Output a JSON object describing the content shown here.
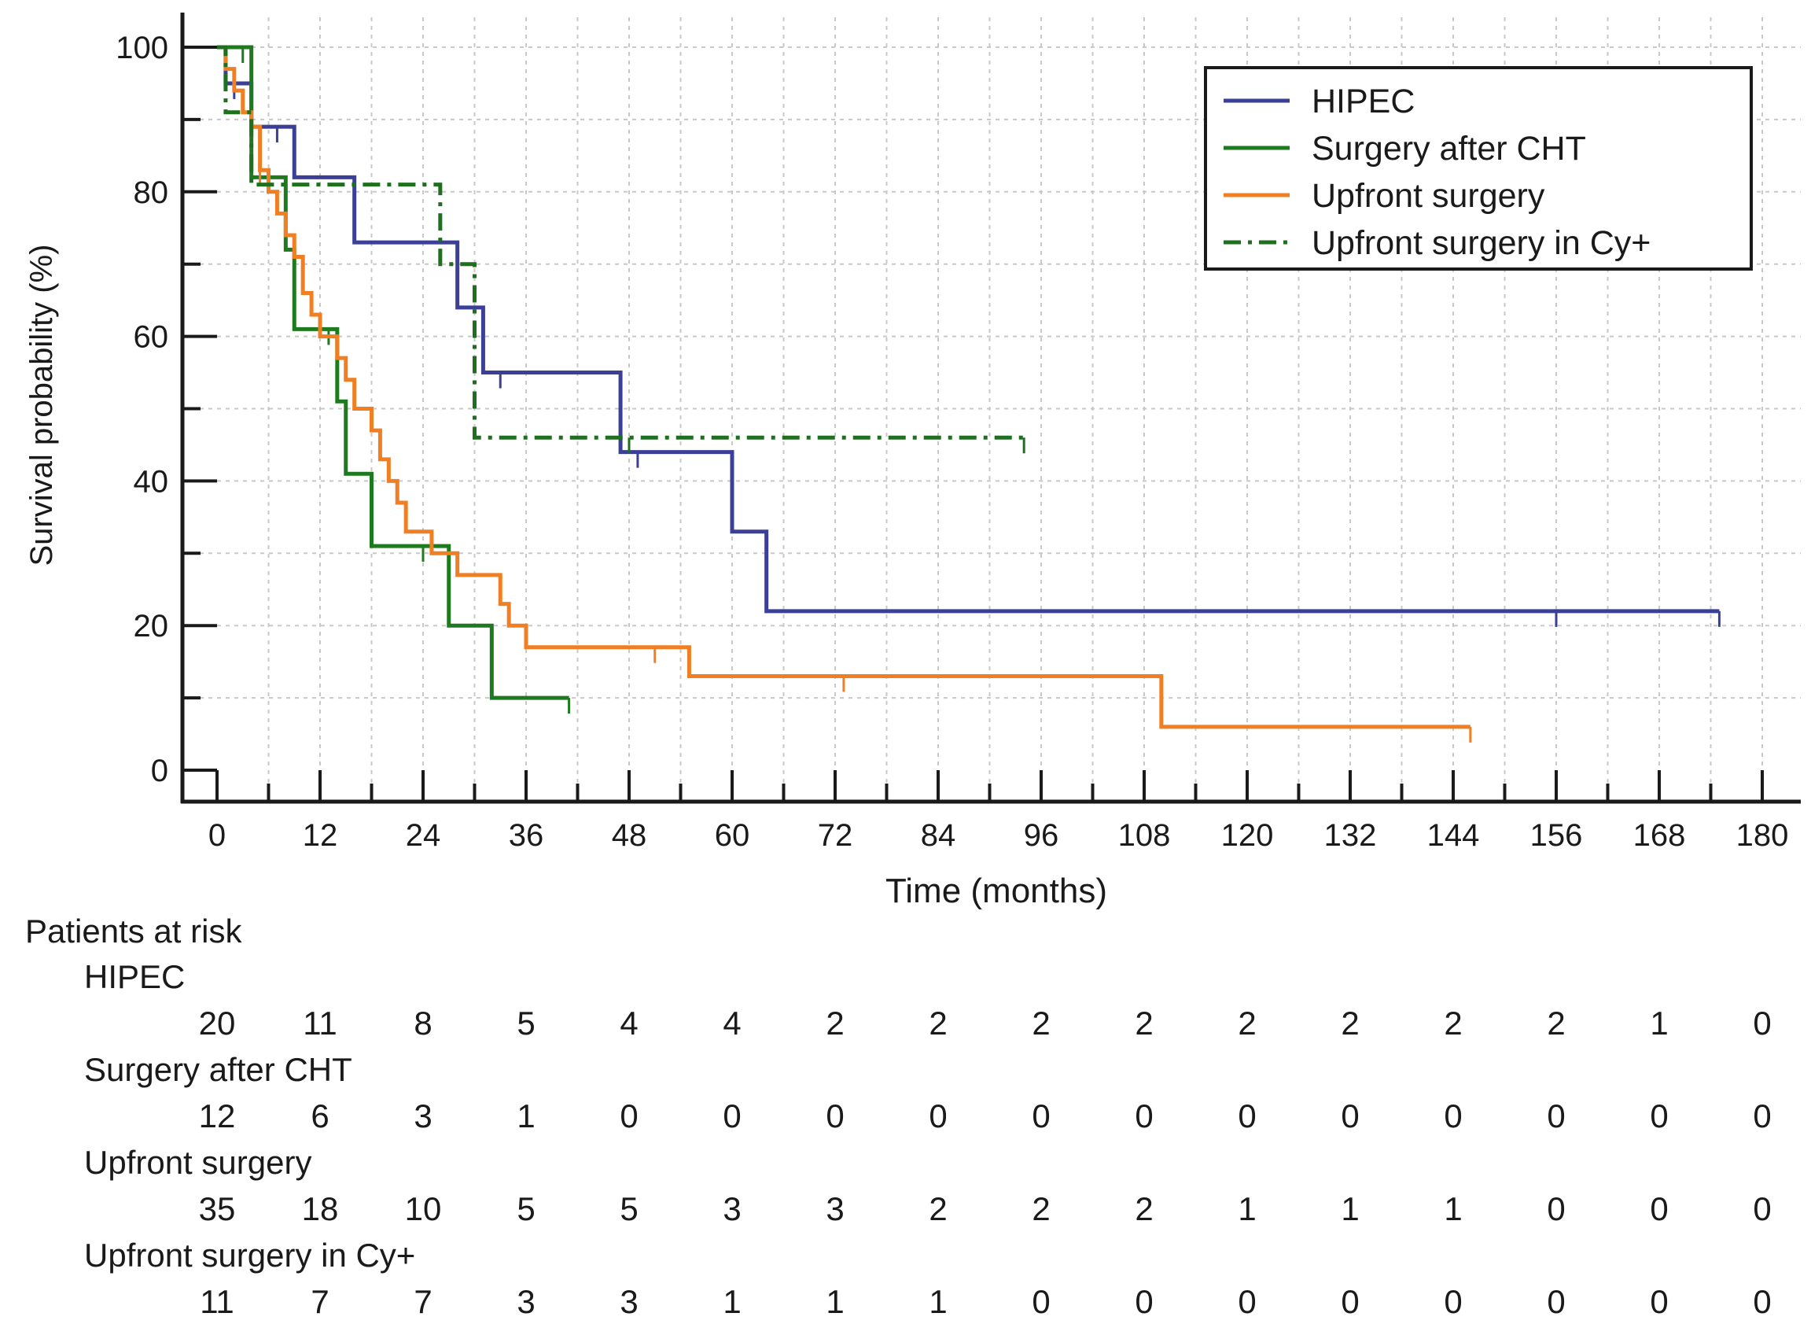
{
  "chart_data": {
    "type": "line",
    "subtype": "kaplan-meier",
    "title": "",
    "xlabel": "Time (months)",
    "ylabel": "Survival probability (%)",
    "xlim": [
      0,
      180
    ],
    "ylim": [
      0,
      100
    ],
    "x_ticks": [
      0,
      12,
      24,
      36,
      48,
      60,
      72,
      84,
      96,
      108,
      120,
      132,
      144,
      156,
      168,
      180
    ],
    "y_ticks": [
      0,
      20,
      40,
      60,
      80,
      100
    ],
    "grid": true,
    "legend_position": "top-right",
    "series": [
      {
        "name": "HIPEC",
        "color": "#3b3f96",
        "dash": "solid",
        "steps": [
          [
            0,
            100
          ],
          [
            1,
            95
          ],
          [
            4,
            89
          ],
          [
            9,
            82
          ],
          [
            16,
            73
          ],
          [
            28,
            64
          ],
          [
            31,
            55
          ],
          [
            47,
            44
          ],
          [
            60,
            33
          ],
          [
            64,
            22
          ],
          [
            175,
            22
          ]
        ],
        "censored": [
          [
            2,
            95
          ],
          [
            5,
            89
          ],
          [
            7,
            89
          ],
          [
            33,
            55
          ],
          [
            49,
            44
          ],
          [
            156,
            22
          ],
          [
            175,
            22
          ]
        ]
      },
      {
        "name": "Surgery after CHT",
        "color": "#1e7a1e",
        "dash": "solid",
        "steps": [
          [
            0,
            100
          ],
          [
            3,
            100
          ],
          [
            4,
            82
          ],
          [
            8,
            72
          ],
          [
            9,
            61
          ],
          [
            14,
            51
          ],
          [
            15,
            41
          ],
          [
            18,
            31
          ],
          [
            27,
            20
          ],
          [
            32,
            10
          ],
          [
            41,
            10
          ]
        ],
        "censored": [
          [
            3,
            100
          ],
          [
            6,
            82
          ],
          [
            13,
            61
          ],
          [
            24,
            31
          ],
          [
            41,
            10
          ]
        ]
      },
      {
        "name": "Upfront surgery",
        "color": "#f07f24",
        "dash": "solid",
        "steps": [
          [
            0,
            100
          ],
          [
            1,
            97
          ],
          [
            2,
            94
          ],
          [
            3,
            91
          ],
          [
            4,
            89
          ],
          [
            5,
            83
          ],
          [
            6,
            80
          ],
          [
            7,
            77
          ],
          [
            8,
            74
          ],
          [
            9,
            71
          ],
          [
            10,
            66
          ],
          [
            11,
            63
          ],
          [
            12,
            60
          ],
          [
            14,
            57
          ],
          [
            15,
            54
          ],
          [
            16,
            50
          ],
          [
            18,
            47
          ],
          [
            19,
            43
          ],
          [
            20,
            40
          ],
          [
            21,
            37
          ],
          [
            22,
            33
          ],
          [
            25,
            30
          ],
          [
            28,
            27
          ],
          [
            33,
            23
          ],
          [
            34,
            20
          ],
          [
            36,
            17
          ],
          [
            55,
            13
          ],
          [
            110,
            6
          ],
          [
            146,
            6
          ]
        ],
        "censored": [
          [
            5,
            83
          ],
          [
            51,
            17
          ],
          [
            73,
            13
          ],
          [
            146,
            6
          ]
        ]
      },
      {
        "name": "Upfront surgery in Cy+",
        "color": "#1e6f1e",
        "dash": "dash-dot",
        "steps": [
          [
            0,
            100
          ],
          [
            1,
            91
          ],
          [
            3,
            91
          ],
          [
            4,
            81
          ],
          [
            25,
            81
          ],
          [
            26,
            70
          ],
          [
            29,
            70
          ],
          [
            30,
            46
          ],
          [
            94,
            46
          ]
        ],
        "censored": [
          [
            48,
            46
          ],
          [
            94,
            46
          ]
        ]
      }
    ],
    "risk_table": {
      "title": "Patients at risk",
      "times": [
        0,
        12,
        24,
        36,
        48,
        60,
        72,
        84,
        96,
        108,
        120,
        132,
        144,
        156,
        168,
        180
      ],
      "rows": [
        {
          "name": "HIPEC",
          "values": [
            20,
            11,
            8,
            5,
            4,
            4,
            2,
            2,
            2,
            2,
            2,
            2,
            2,
            2,
            1,
            0
          ]
        },
        {
          "name": "Surgery after CHT",
          "values": [
            12,
            6,
            3,
            1,
            0,
            0,
            0,
            0,
            0,
            0,
            0,
            0,
            0,
            0,
            0,
            0
          ]
        },
        {
          "name": "Upfront surgery",
          "values": [
            35,
            18,
            10,
            5,
            5,
            3,
            3,
            2,
            2,
            2,
            1,
            1,
            1,
            0,
            0,
            0
          ]
        },
        {
          "name": "Upfront surgery in Cy+",
          "values": [
            11,
            7,
            7,
            3,
            3,
            1,
            1,
            1,
            0,
            0,
            0,
            0,
            0,
            0,
            0,
            0
          ]
        }
      ]
    }
  }
}
